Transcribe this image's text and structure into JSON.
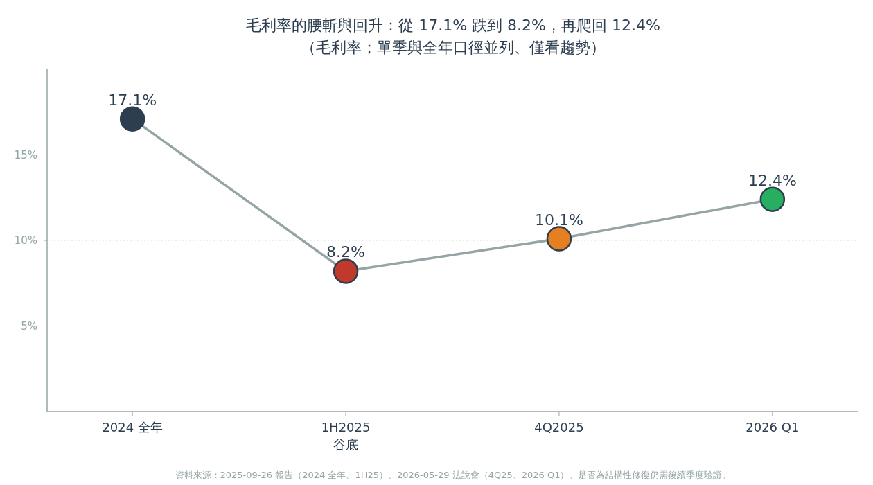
{
  "chart_data": {
    "type": "line",
    "title": "毛利率的腰斬與回升：從 17.1% 跌到 8.2%，再爬回 12.4%",
    "subtitle": "（毛利率；單季與全年口徑並列、僅看趨勢）",
    "categories": [
      "2024 全年",
      "1H2025\n谷底",
      "4Q2025",
      "2026 Q1"
    ],
    "series": [
      {
        "color": "#95a5a6",
        "colors": [
          "#2c3e50",
          "#c0392b",
          "#e67e22",
          "#27ae60"
        ],
        "values": [
          17.1,
          8.2,
          10.1,
          12.4
        ],
        "value_labels": [
          "17.1%",
          "8.2%",
          "10.1%",
          "12.4%"
        ]
      }
    ],
    "ylim": [
      0,
      20
    ],
    "yticks": [
      {
        "value": 5,
        "label": "5%"
      },
      {
        "value": 10,
        "label": "10%"
      },
      {
        "value": 15,
        "label": "15%"
      }
    ],
    "grid": "y",
    "marker": "circle",
    "line_style": "solid",
    "annotations": [
      "資料來源：2025-09-26 報告（2024 全年、1H25）、2026-05-29 法說會（4Q25、2026 Q1）。是否為結構性修復仍需後續季度驗證。"
    ]
  }
}
